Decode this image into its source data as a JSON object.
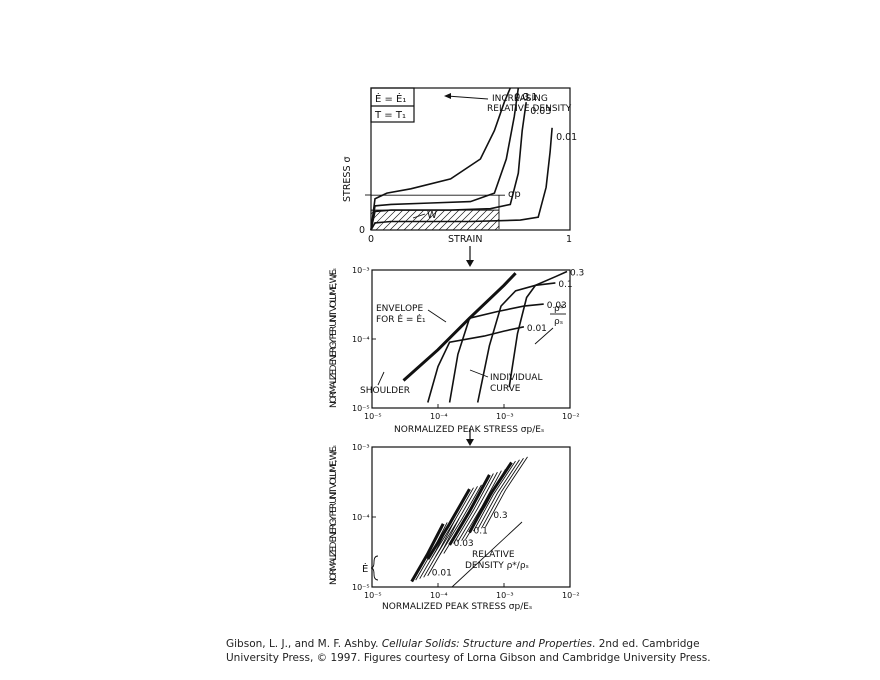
{
  "chart_data": [
    {
      "type": "line",
      "ylabel": "STRESS σ",
      "xlabel": "STRAIN",
      "x_ticks": [
        "0",
        "1"
      ],
      "y_ticks": [
        "0"
      ],
      "xlim": [
        0,
        1
      ],
      "legend_box": [
        "Ė = Ė₁",
        "T = T₁"
      ],
      "annotations": [
        "INCREASING",
        "RELATIVE DENSITY",
        "σp",
        "W"
      ],
      "series": [
        {
          "name": "0.3",
          "x": [
            0,
            0.02,
            0.08,
            0.2,
            0.4,
            0.55,
            0.62,
            0.67,
            0.7
          ],
          "y": [
            0,
            0.22,
            0.26,
            0.29,
            0.36,
            0.5,
            0.7,
            0.9,
            1.0
          ]
        },
        {
          "name": "0.1",
          "x": [
            0,
            0.02,
            0.1,
            0.3,
            0.5,
            0.62,
            0.68,
            0.72,
            0.74
          ],
          "y": [
            0,
            0.17,
            0.18,
            0.19,
            0.2,
            0.26,
            0.5,
            0.8,
            1.0
          ]
        },
        {
          "name": "0.03",
          "x": [
            0,
            0.02,
            0.1,
            0.4,
            0.6,
            0.7,
            0.74,
            0.76,
            0.78
          ],
          "y": [
            0,
            0.13,
            0.14,
            0.14,
            0.15,
            0.18,
            0.4,
            0.7,
            0.9
          ]
        },
        {
          "name": "0.01",
          "x": [
            0,
            0.02,
            0.1,
            0.5,
            0.75,
            0.84,
            0.88,
            0.9,
            0.91
          ],
          "y": [
            0,
            0.05,
            0.06,
            0.06,
            0.07,
            0.09,
            0.3,
            0.55,
            0.72
          ]
        }
      ]
    },
    {
      "type": "line",
      "ylabel": "NORMALIZED ENERGY PER UNIT VOLUME, W/Eₛ",
      "xlabel": "NORMALIZED PEAK STRESS σp/Eₛ",
      "x_scale": "log",
      "y_scale": "log",
      "xlim": [
        1e-05,
        0.01
      ],
      "ylim": [
        1e-05,
        0.001
      ],
      "x_ticks": [
        "10⁻⁵",
        "10⁻⁴",
        "10⁻³",
        "10⁻²"
      ],
      "y_ticks": [
        "10⁻⁵",
        "10⁻⁴",
        "10⁻³"
      ],
      "annotations": [
        "ENVELOPE",
        "FOR Ė = Ė₁",
        "SHOULDER",
        "INDIVIDUAL",
        "CURVE",
        "ρ*",
        "ρₛ"
      ],
      "series": [
        {
          "name": "0.3",
          "x": [
            0.0012,
            0.0016,
            0.0022,
            0.003,
            0.006,
            0.009
          ],
          "y": [
            2e-05,
            0.00012,
            0.0004,
            0.0006,
            0.0008,
            0.00095
          ]
        },
        {
          "name": "0.1",
          "x": [
            0.0004,
            0.0006,
            0.0009,
            0.0015,
            0.003,
            0.006
          ],
          "y": [
            1.2e-05,
            8e-05,
            0.0003,
            0.0005,
            0.0006,
            0.00065
          ]
        },
        {
          "name": "0.03",
          "x": [
            0.00015,
            0.0002,
            0.0003,
            0.0008,
            0.002,
            0.004
          ],
          "y": [
            1.2e-05,
            6e-05,
            0.0002,
            0.00025,
            0.0003,
            0.00032
          ]
        },
        {
          "name": "0.01",
          "x": [
            7e-05,
            0.0001,
            0.00015,
            0.0005,
            0.001,
            0.002
          ],
          "y": [
            1.2e-05,
            4e-05,
            9e-05,
            0.00011,
            0.00013,
            0.00015
          ]
        },
        {
          "name": "envelope",
          "x": [
            3e-05,
            0.0001,
            0.0003,
            0.001,
            0.0015
          ],
          "y": [
            2.5e-05,
            7e-05,
            0.0002,
            0.0006,
            0.0009
          ]
        }
      ]
    },
    {
      "type": "line",
      "ylabel": "NORMALIZED ENERGY PER UNIT VOLUME, W/Eₛ",
      "xlabel": "NORMALIZED PEAK STRESS σp/Eₛ",
      "x_scale": "log",
      "y_scale": "log",
      "xlim": [
        1e-05,
        0.01
      ],
      "ylim": [
        1e-05,
        0.001
      ],
      "x_ticks": [
        "10⁻⁵",
        "10⁻⁴",
        "10⁻³",
        "10⁻²"
      ],
      "y_ticks": [
        "10⁻⁵",
        "10⁻⁴",
        "10⁻³"
      ],
      "annotations": [
        "Ė",
        "RELATIVE",
        "DENSITY ρ*/ρₛ"
      ],
      "series": [
        {
          "name": "0.3",
          "x": [
            0.0003,
            0.0006,
            0.0013
          ],
          "y": [
            6e-05,
            0.0002,
            0.0006
          ]
        },
        {
          "name": "0.1",
          "x": [
            0.00015,
            0.0003,
            0.0006
          ],
          "y": [
            4e-05,
            0.00012,
            0.0004
          ]
        },
        {
          "name": "0.03",
          "x": [
            7e-05,
            0.00015,
            0.0003
          ],
          "y": [
            2.5e-05,
            8e-05,
            0.00025
          ]
        },
        {
          "name": "0.01",
          "x": [
            4e-05,
            7e-05,
            0.00012
          ],
          "y": [
            1.2e-05,
            3e-05,
            8e-05
          ]
        }
      ]
    }
  ],
  "caption": {
    "authors": "Gibson, L. J., and M. F. Ashby. ",
    "title": "Cellular Solids: Structure and Properties",
    "rest": ". 2nd ed. Cambridge University Press, © 1997. Figures courtesy of Lorna Gibson and Cambridge University Press."
  }
}
